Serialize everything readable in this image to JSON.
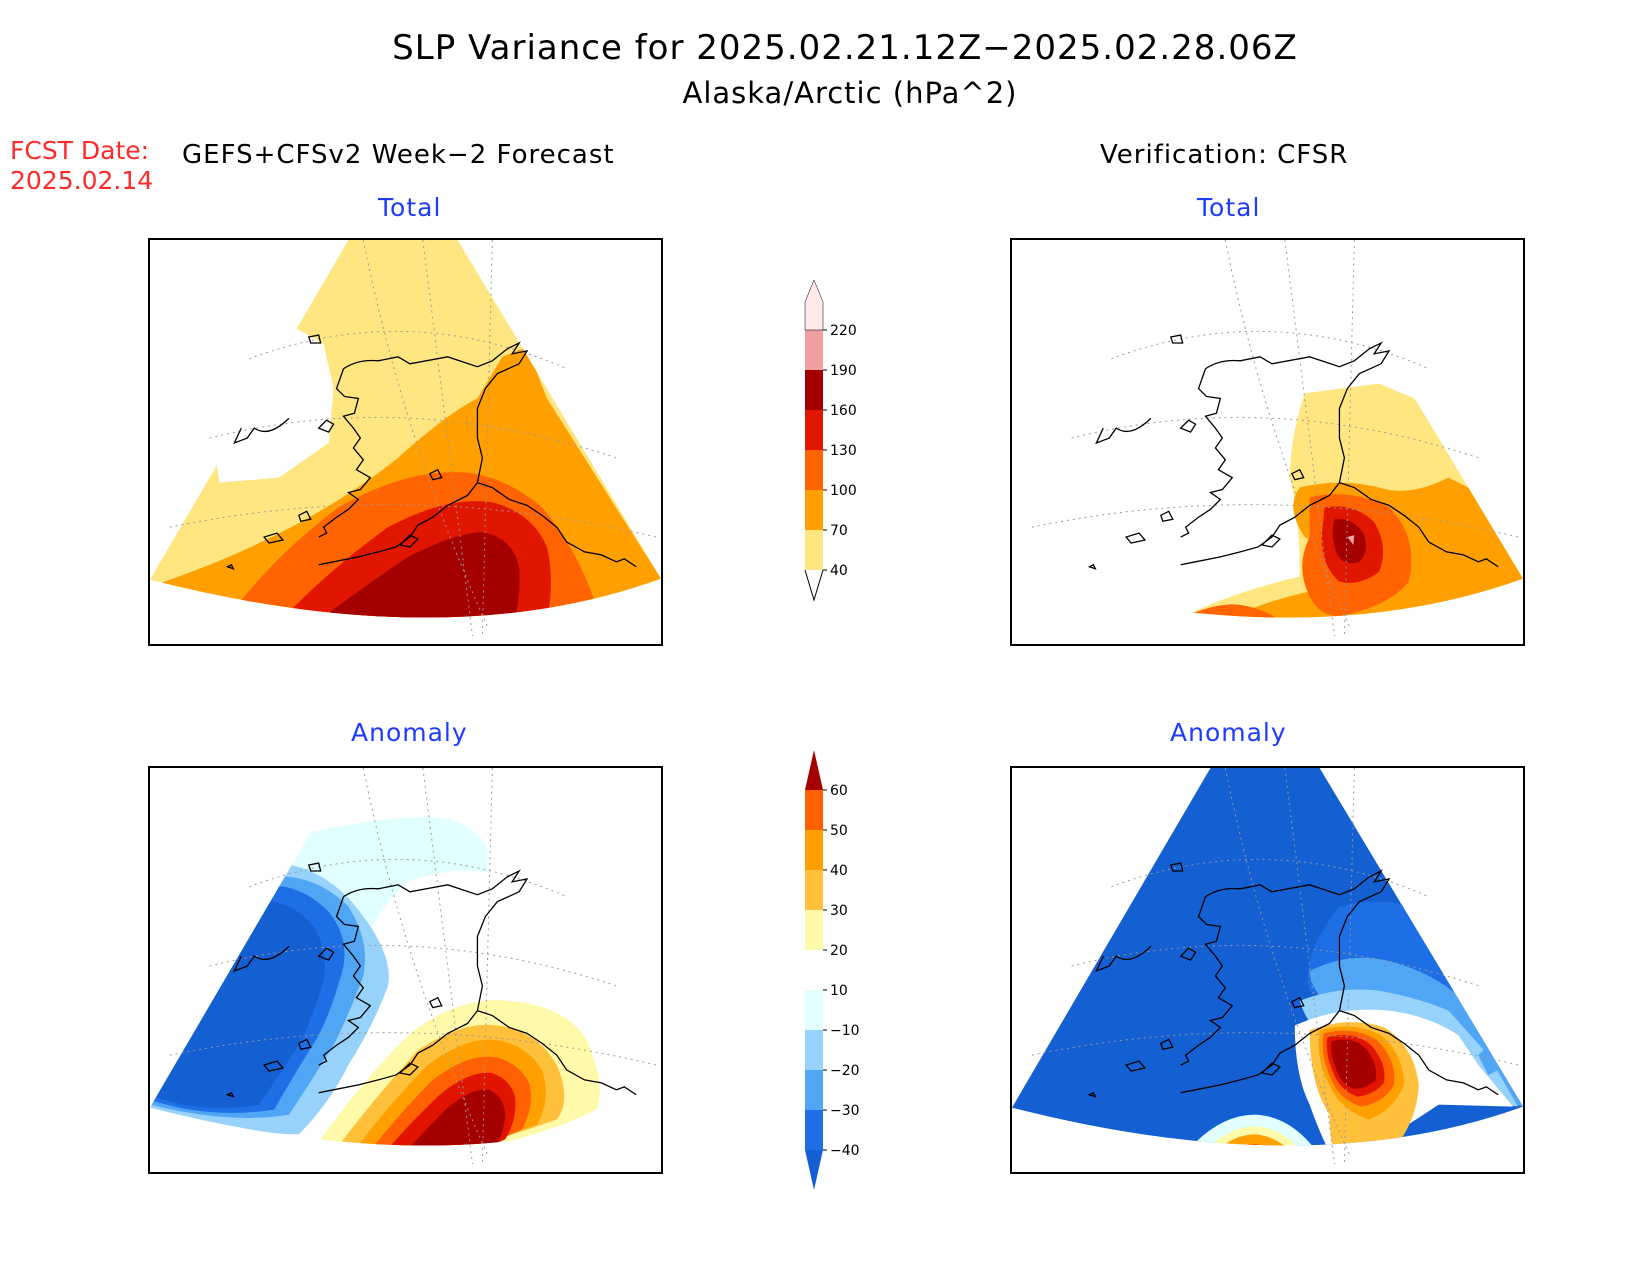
{
  "title": "SLP Variance for 2025.02.21.12Z−2025.02.28.06Z",
  "subtitle": "Alaska/Arctic (hPa^2)",
  "fcst_date_label": "FCST Date:",
  "fcst_date_value": "2025.02.14",
  "left_header": "GEFS+CFSv2 Week−2 Forecast",
  "right_header": "Verification: CFSR",
  "panels": {
    "forecast_total": "Total",
    "verification_total": "Total",
    "forecast_anomaly": "Anomaly",
    "verification_anomaly": "Anomaly"
  },
  "total_colorbar": {
    "levels": [
      "40",
      "70",
      "100",
      "130",
      "160",
      "190",
      "220"
    ],
    "colors": [
      "#ffe680",
      "#ffa000",
      "#ff6400",
      "#e11600",
      "#a50000",
      "#f0a0a0",
      "#ffe8e8"
    ]
  },
  "anomaly_colorbar": {
    "levels": [
      "−40",
      "−30",
      "−20",
      "−10",
      "10",
      "20",
      "30",
      "40",
      "50",
      "60"
    ],
    "colors": [
      "#1460d2",
      "#1e6ee6",
      "#50a5f5",
      "#96d2fa",
      "#e1ffff",
      "#ffffff",
      "#fffaaa",
      "#ffc03c",
      "#ffa000",
      "#ff6000",
      "#e11400",
      "#a50000"
    ]
  },
  "colors": {
    "title_blue": "#1e3cff",
    "fcst_red": "#ff2a2a"
  }
}
